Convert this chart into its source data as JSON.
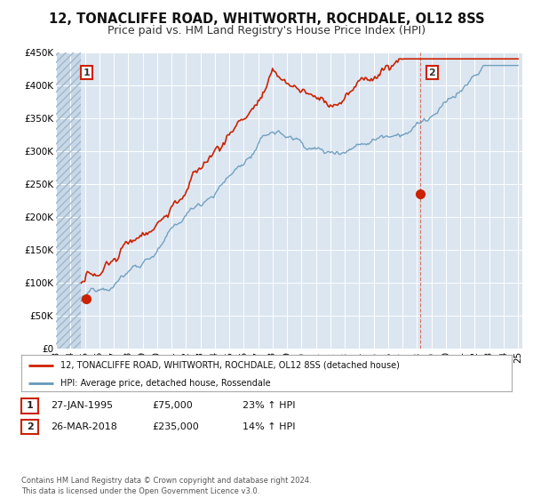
{
  "title": "12, TONACLIFFE ROAD, WHITWORTH, ROCHDALE, OL12 8SS",
  "subtitle": "Price paid vs. HM Land Registry's House Price Index (HPI)",
  "ylim": [
    0,
    450000
  ],
  "yticks": [
    0,
    50000,
    100000,
    150000,
    200000,
    250000,
    300000,
    350000,
    400000,
    450000
  ],
  "ytick_labels": [
    "£0",
    "£50K",
    "£100K",
    "£150K",
    "£200K",
    "£250K",
    "£300K",
    "£350K",
    "£400K",
    "£450K"
  ],
  "background_color": "#ffffff",
  "plot_bg_color": "#dce6f1",
  "hatch_bg_color": "#c8d8e8",
  "grid_color": "#ffffff",
  "red_color": "#cc2200",
  "blue_color": "#6699bb",
  "sale1_year": 1995.08,
  "sale1_price": 75000,
  "sale2_year": 2018.24,
  "sale2_price": 235000,
  "legend_house": "12, TONACLIFFE ROAD, WHITWORTH, ROCHDALE, OL12 8SS (detached house)",
  "legend_hpi": "HPI: Average price, detached house, Rossendale",
  "table_row1": [
    "1",
    "27-JAN-1995",
    "£75,000",
    "23% ↑ HPI"
  ],
  "table_row2": [
    "2",
    "26-MAR-2018",
    "£235,000",
    "14% ↑ HPI"
  ],
  "footnote": "Contains HM Land Registry data © Crown copyright and database right 2024.\nThis data is licensed under the Open Government Licence v3.0.",
  "title_fontsize": 10.5,
  "subtitle_fontsize": 9,
  "tick_fontsize": 7.5,
  "label_fontsize": 8
}
